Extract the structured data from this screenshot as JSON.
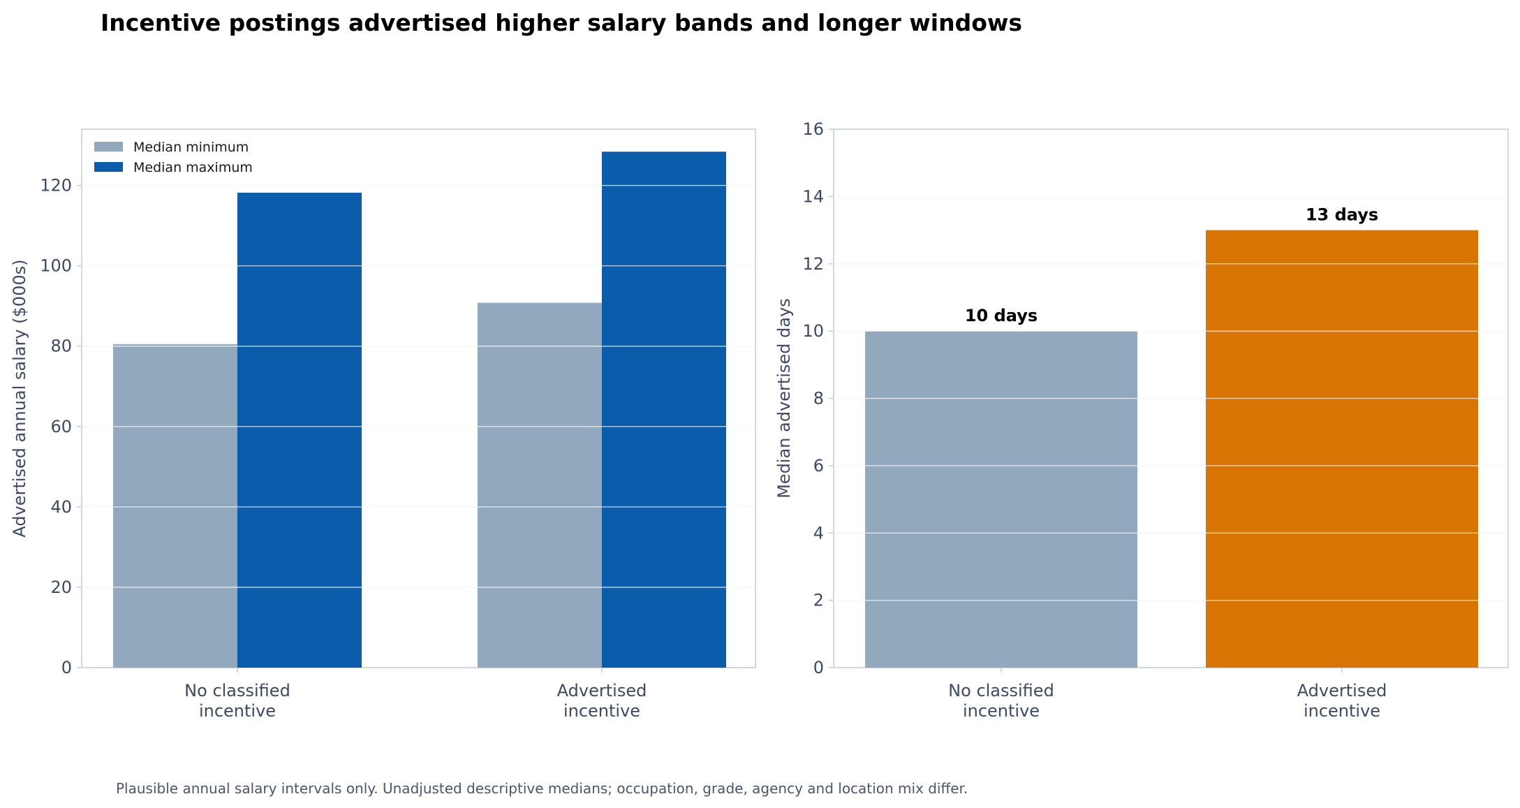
{
  "title": "Incentive postings advertised higher salary bands and longer windows",
  "footnote": "Plausible annual salary intervals only. Unadjusted descriptive medians; occupation, grade, agency and location mix differ.",
  "colors": {
    "median_minimum": "#92a8bd",
    "median_maximum": "#0b5cab",
    "no_incentive_days": "#92a8bd",
    "incentive_days": "#d97504",
    "grid": "#e3e8ef",
    "spine": "#c5cfdc",
    "tick_text": "#3d4a63"
  },
  "chart_data": [
    {
      "type": "bar",
      "categories": [
        "No classified\nincentive",
        "Advertised\nincentive"
      ],
      "series": [
        {
          "name": "Median minimum",
          "values": [
            80.5,
            90.8
          ]
        },
        {
          "name": "Median maximum",
          "values": [
            118.2,
            128.4
          ]
        }
      ],
      "title": "",
      "xlabel": "",
      "ylabel": "Advertised annual salary ($000s)",
      "ylim": [
        0,
        134
      ],
      "yticks": [
        0,
        20,
        40,
        60,
        80,
        100,
        120
      ],
      "grid": true,
      "legend": "upper-left"
    },
    {
      "type": "bar",
      "categories": [
        "No classified\nincentive",
        "Advertised\nincentive"
      ],
      "values": [
        10,
        13
      ],
      "data_labels": [
        "10 days",
        "13 days"
      ],
      "title": "",
      "xlabel": "",
      "ylabel": "Median advertised days",
      "ylim": [
        0,
        16
      ],
      "yticks": [
        0,
        2,
        4,
        6,
        8,
        10,
        12,
        14,
        16
      ],
      "grid": true
    }
  ]
}
